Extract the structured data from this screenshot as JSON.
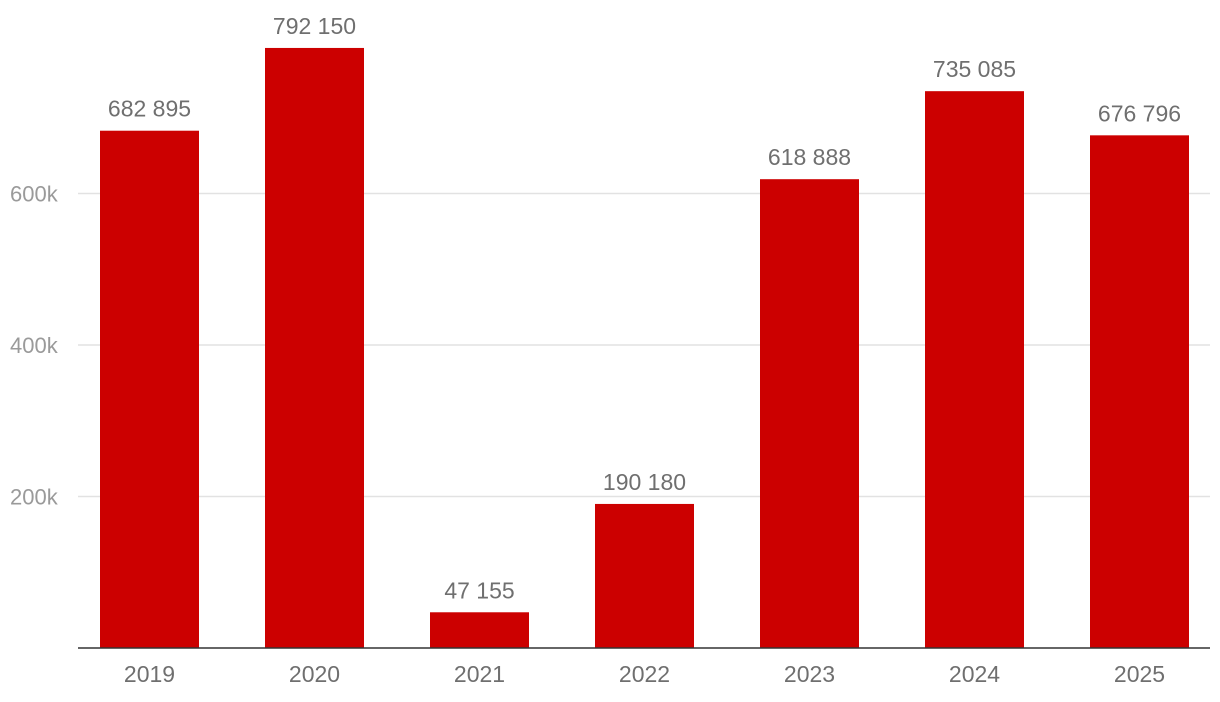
{
  "chart_data": {
    "type": "bar",
    "title": "",
    "xlabel": "",
    "ylabel": "",
    "categories": [
      "2019",
      "2020",
      "2021",
      "2022",
      "2023",
      "2024",
      "2025"
    ],
    "values": [
      682895,
      792150,
      47155,
      190180,
      618888,
      735085,
      676796
    ],
    "value_labels": [
      "682 895",
      "792 150",
      "47 155",
      "190 180",
      "618 888",
      "735 085",
      "676 796"
    ],
    "ylim": [
      0,
      800000
    ],
    "yticks": [
      {
        "value": 200000,
        "label": "200k"
      },
      {
        "value": 400000,
        "label": "400k"
      },
      {
        "value": 600000,
        "label": "600k"
      }
    ],
    "grid": true,
    "legend": "none",
    "colors": {
      "bar": "#cc0000",
      "grid": "#e2e2e2",
      "axis": "#333333",
      "tick_text": "#9a9a9a",
      "label_text": "#6f6f6f"
    }
  }
}
